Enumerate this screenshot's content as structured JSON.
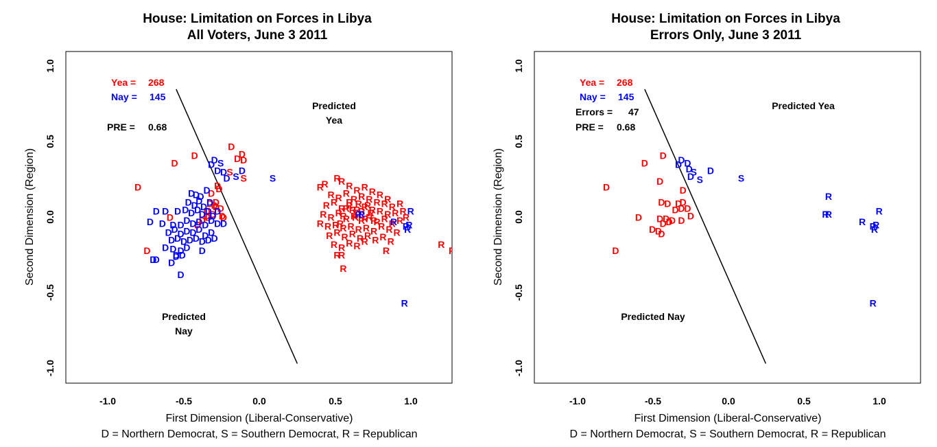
{
  "colors": {
    "yea": "#ff0000",
    "nay": "#0000ff",
    "ink": "#000000"
  },
  "footer_legend": "D = Northern Democrat, S = Southern Democrat, R = Republican",
  "chart_data": [
    {
      "type": "scatter",
      "title": "House: Limitation on Forces in Libya",
      "subtitle": "All Voters, June 3 2011",
      "xlabel": "First Dimension (Liberal-Conservative)",
      "ylabel": "Second Dimension (Region)",
      "xlim": [
        -1.25,
        1.27
      ],
      "ylim": [
        -1.1,
        1.1
      ],
      "xticks": [
        "-1.0",
        "-0.5",
        "0.0",
        "0.5",
        "1.0"
      ],
      "yticks": [
        "-1.0",
        "-0.5",
        "0.0",
        "0.5",
        "1.0"
      ],
      "grid": false,
      "legend_placement": "top-left",
      "stats": [
        {
          "label": "Yea =",
          "value": "268",
          "color": "#ff0000"
        },
        {
          "label": "Nay =",
          "value": "145",
          "color": "#0000ff"
        },
        {
          "label": "PRE =",
          "value": "0.68",
          "color": "#000000"
        }
      ],
      "annotations": [
        {
          "text": [
            "Predicted",
            "Yea"
          ],
          "x": 0.5,
          "y": 0.73
        },
        {
          "text": [
            "Predicted",
            "Nay"
          ],
          "x": -0.5,
          "y": -0.7
        }
      ],
      "cutting_line": {
        "x1": -0.53,
        "y1": 0.85,
        "x2": 0.26,
        "y2": -0.97
      },
      "series": [
        {
          "name": "Yea",
          "color": "#ff0000",
          "points": [
            [
              -0.78,
              0.2
            ],
            [
              -0.54,
              0.36
            ],
            [
              -0.41,
              0.41
            ],
            [
              -0.17,
              0.47
            ],
            [
              -0.1,
              0.42
            ],
            [
              -0.09,
              0.38
            ],
            [
              -0.13,
              0.39
            ],
            [
              -0.18,
              0.3
            ],
            [
              -0.09,
              0.26
            ],
            [
              -0.25,
              0.19
            ],
            [
              -0.26,
              0.21
            ],
            [
              -0.3,
              0.16
            ],
            [
              -0.27,
              0.1
            ],
            [
              -0.31,
              0.09
            ],
            [
              -0.27,
              0.07
            ],
            [
              -0.23,
              0.01
            ],
            [
              -0.24,
              0.06
            ],
            [
              -0.33,
              0.04
            ],
            [
              -0.33,
              0.01
            ],
            [
              -0.57,
              0.0
            ],
            [
              -0.32,
              0.0
            ],
            [
              -0.28,
              0.08
            ],
            [
              -0.72,
              -0.22
            ],
            [
              -0.29,
              0.02
            ],
            [
              -0.39,
              -0.05
            ],
            [
              -0.22,
              0.0
            ],
            [
              -0.36,
              -0.02
            ],
            [
              0.41,
              0.2
            ],
            [
              0.44,
              0.22
            ],
            [
              0.52,
              0.26
            ],
            [
              0.55,
              0.24
            ],
            [
              0.6,
              0.21
            ],
            [
              0.65,
              0.18
            ],
            [
              0.7,
              0.2
            ],
            [
              0.75,
              0.17
            ],
            [
              0.8,
              0.15
            ],
            [
              0.85,
              0.12
            ],
            [
              0.48,
              0.15
            ],
            [
              0.53,
              0.13
            ],
            [
              0.58,
              0.16
            ],
            [
              0.63,
              0.12
            ],
            [
              0.68,
              0.14
            ],
            [
              0.73,
              0.12
            ],
            [
              0.78,
              0.1
            ],
            [
              0.83,
              0.09
            ],
            [
              0.88,
              0.07
            ],
            [
              0.93,
              0.09
            ],
            [
              0.45,
              0.08
            ],
            [
              0.5,
              0.1
            ],
            [
              0.55,
              0.06
            ],
            [
              0.6,
              0.08
            ],
            [
              0.65,
              0.05
            ],
            [
              0.7,
              0.07
            ],
            [
              0.75,
              0.05
            ],
            [
              0.8,
              0.04
            ],
            [
              0.85,
              0.02
            ],
            [
              0.9,
              0.03
            ],
            [
              0.95,
              0.04
            ],
            [
              0.97,
              0.0
            ],
            [
              0.43,
              0.02
            ],
            [
              0.48,
              0.0
            ],
            [
              0.53,
              0.03
            ],
            [
              0.58,
              -0.01
            ],
            [
              0.63,
              0.01
            ],
            [
              0.68,
              -0.02
            ],
            [
              0.73,
              0.0
            ],
            [
              0.78,
              -0.03
            ],
            [
              0.83,
              -0.01
            ],
            [
              0.88,
              -0.04
            ],
            [
              0.93,
              -0.02
            ],
            [
              0.41,
              -0.04
            ],
            [
              0.46,
              -0.06
            ],
            [
              0.51,
              -0.05
            ],
            [
              0.56,
              -0.07
            ],
            [
              0.61,
              -0.06
            ],
            [
              0.66,
              -0.08
            ],
            [
              0.71,
              -0.07
            ],
            [
              0.76,
              -0.09
            ],
            [
              0.81,
              -0.06
            ],
            [
              0.86,
              -0.08
            ],
            [
              0.91,
              -0.1
            ],
            [
              0.47,
              -0.12
            ],
            [
              0.52,
              -0.1
            ],
            [
              0.57,
              -0.13
            ],
            [
              0.62,
              -0.11
            ],
            [
              0.67,
              -0.14
            ],
            [
              0.72,
              -0.12
            ],
            [
              0.77,
              -0.15
            ],
            [
              0.82,
              -0.13
            ],
            [
              0.87,
              -0.16
            ],
            [
              0.5,
              -0.18
            ],
            [
              0.55,
              -0.2
            ],
            [
              0.6,
              -0.17
            ],
            [
              0.65,
              -0.19
            ],
            [
              0.7,
              -0.16
            ],
            [
              0.84,
              -0.22
            ],
            [
              0.52,
              -0.25
            ],
            [
              0.55,
              -0.25
            ],
            [
              0.56,
              -0.34
            ],
            [
              0.6,
              0.1
            ],
            [
              0.62,
              0.05
            ],
            [
              0.64,
              0.0
            ],
            [
              0.66,
              0.09
            ],
            [
              0.68,
              0.04
            ],
            [
              0.7,
              -0.01
            ],
            [
              0.72,
              0.08
            ],
            [
              0.74,
              0.03
            ],
            [
              0.76,
              -0.02
            ],
            [
              0.58,
              0.06
            ],
            [
              0.56,
              0.01
            ],
            [
              0.54,
              -0.04
            ],
            [
              1.2,
              -0.18
            ],
            [
              1.27,
              -0.22
            ]
          ]
        },
        {
          "name": "Nay",
          "color": "#0000ff",
          "points": [
            [
              -0.28,
              0.38
            ],
            [
              -0.24,
              0.36
            ],
            [
              -0.3,
              0.35
            ],
            [
              -0.26,
              0.31
            ],
            [
              -0.22,
              0.3
            ],
            [
              -0.2,
              0.26
            ],
            [
              -0.1,
              0.31
            ],
            [
              -0.14,
              0.27
            ],
            [
              0.1,
              0.26
            ],
            [
              -0.4,
              0.15
            ],
            [
              -0.43,
              0.16
            ],
            [
              -0.37,
              0.14
            ],
            [
              -0.33,
              0.18
            ],
            [
              -0.45,
              0.1
            ],
            [
              -0.41,
              0.08
            ],
            [
              -0.38,
              0.11
            ],
            [
              -0.35,
              0.07
            ],
            [
              -0.31,
              0.1
            ],
            [
              -0.47,
              0.05
            ],
            [
              -0.43,
              0.03
            ],
            [
              -0.39,
              0.05
            ],
            [
              -0.36,
              0.02
            ],
            [
              -0.32,
              0.04
            ],
            [
              -0.29,
              0.01
            ],
            [
              -0.26,
              0.04
            ],
            [
              -0.66,
              0.04
            ],
            [
              -0.6,
              0.04
            ],
            [
              -0.52,
              0.04
            ],
            [
              -0.7,
              -0.03
            ],
            [
              -0.62,
              -0.04
            ],
            [
              -0.55,
              -0.05
            ],
            [
              -0.5,
              -0.05
            ],
            [
              -0.46,
              -0.02
            ],
            [
              -0.42,
              -0.04
            ],
            [
              -0.38,
              -0.03
            ],
            [
              -0.34,
              -0.05
            ],
            [
              -0.3,
              -0.02
            ],
            [
              -0.26,
              -0.04
            ],
            [
              -0.22,
              -0.04
            ],
            [
              -0.58,
              -0.1
            ],
            [
              -0.54,
              -0.08
            ],
            [
              -0.5,
              -0.11
            ],
            [
              -0.46,
              -0.09
            ],
            [
              -0.42,
              -0.1
            ],
            [
              -0.38,
              -0.08
            ],
            [
              -0.34,
              -0.12
            ],
            [
              -0.3,
              -0.1
            ],
            [
              -0.56,
              -0.15
            ],
            [
              -0.52,
              -0.14
            ],
            [
              -0.48,
              -0.16
            ],
            [
              -0.44,
              -0.15
            ],
            [
              -0.4,
              -0.14
            ],
            [
              -0.36,
              -0.16
            ],
            [
              -0.32,
              -0.15
            ],
            [
              -0.28,
              -0.14
            ],
            [
              -0.6,
              -0.2
            ],
            [
              -0.55,
              -0.21
            ],
            [
              -0.5,
              -0.22
            ],
            [
              -0.46,
              -0.2
            ],
            [
              -0.36,
              -0.22
            ],
            [
              -0.53,
              -0.25
            ],
            [
              -0.49,
              -0.25
            ],
            [
              -0.68,
              -0.28
            ],
            [
              -0.66,
              -0.28
            ],
            [
              -0.56,
              -0.3
            ],
            [
              -0.5,
              -0.38
            ],
            [
              -0.53,
              -0.26
            ],
            [
              0.66,
              0.02
            ],
            [
              0.68,
              0.02
            ],
            [
              0.89,
              -0.03
            ],
            [
              0.97,
              -0.06
            ],
            [
              0.98,
              -0.08
            ],
            [
              0.99,
              -0.05
            ],
            [
              1.0,
              0.04
            ],
            [
              0.96,
              -0.57
            ]
          ]
        }
      ]
    },
    {
      "type": "scatter",
      "title": "House: Limitation on Forces in Libya",
      "subtitle": "Errors Only, June 3 2011",
      "xlabel": "First Dimension (Liberal-Conservative)",
      "ylabel": "Second Dimension (Region)",
      "xlim": [
        -1.25,
        1.27
      ],
      "ylim": [
        -1.1,
        1.1
      ],
      "xticks": [
        "-1.0",
        "-0.5",
        "0.0",
        "0.5",
        "1.0"
      ],
      "yticks": [
        "-1.0",
        "-0.5",
        "0.0",
        "0.5",
        "1.0"
      ],
      "grid": false,
      "legend_placement": "top-left",
      "stats": [
        {
          "label": "Yea =",
          "value": "268",
          "color": "#ff0000"
        },
        {
          "label": "Nay =",
          "value": "145",
          "color": "#0000ff"
        },
        {
          "label": "Errors =",
          "value": "47",
          "color": "#000000"
        },
        {
          "label": "PRE =",
          "value": "0.68",
          "color": "#000000"
        }
      ],
      "annotations": [
        {
          "text": [
            "Predicted Yea"
          ],
          "x": 0.63,
          "y": 0.73
        },
        {
          "text": [
            "Predicted Nay"
          ],
          "x": -0.49,
          "y": -0.7
        }
      ],
      "cutting_line": {
        "x1": -0.53,
        "y1": 0.85,
        "x2": 0.26,
        "y2": -0.97
      },
      "series": [
        {
          "name": "Yea",
          "color": "#ff0000",
          "points": [
            [
              -0.78,
              0.2
            ],
            [
              -0.53,
              0.36
            ],
            [
              -0.41,
              0.41
            ],
            [
              -0.43,
              0.24
            ],
            [
              -0.28,
              0.18
            ],
            [
              -0.42,
              0.1
            ],
            [
              -0.38,
              0.09
            ],
            [
              -0.31,
              0.09
            ],
            [
              -0.28,
              0.1
            ],
            [
              -0.25,
              0.06
            ],
            [
              -0.29,
              0.06
            ],
            [
              -0.33,
              0.05
            ],
            [
              -0.23,
              0.01
            ],
            [
              -0.57,
              0.0
            ],
            [
              -0.43,
              -0.01
            ],
            [
              -0.39,
              -0.01
            ],
            [
              -0.35,
              -0.02
            ],
            [
              -0.29,
              -0.02
            ],
            [
              -0.41,
              -0.04
            ],
            [
              -0.37,
              -0.03
            ],
            [
              -0.48,
              -0.08
            ],
            [
              -0.44,
              -0.09
            ],
            [
              -0.42,
              -0.11
            ],
            [
              -0.72,
              -0.22
            ]
          ]
        },
        {
          "name": "Nay",
          "color": "#0000ff",
          "points": [
            [
              -0.29,
              0.38
            ],
            [
              -0.25,
              0.36
            ],
            [
              -0.31,
              0.35
            ],
            [
              -0.24,
              0.32
            ],
            [
              -0.21,
              0.3
            ],
            [
              -0.1,
              0.31
            ],
            [
              -0.17,
              0.25
            ],
            [
              -0.23,
              0.27
            ],
            [
              0.1,
              0.26
            ],
            [
              0.67,
              0.14
            ],
            [
              0.65,
              0.02
            ],
            [
              0.67,
              0.02
            ],
            [
              0.89,
              -0.03
            ],
            [
              0.96,
              -0.06
            ],
            [
              0.97,
              -0.08
            ],
            [
              0.98,
              -0.05
            ],
            [
              1.0,
              0.04
            ],
            [
              0.96,
              -0.57
            ]
          ]
        }
      ]
    }
  ]
}
